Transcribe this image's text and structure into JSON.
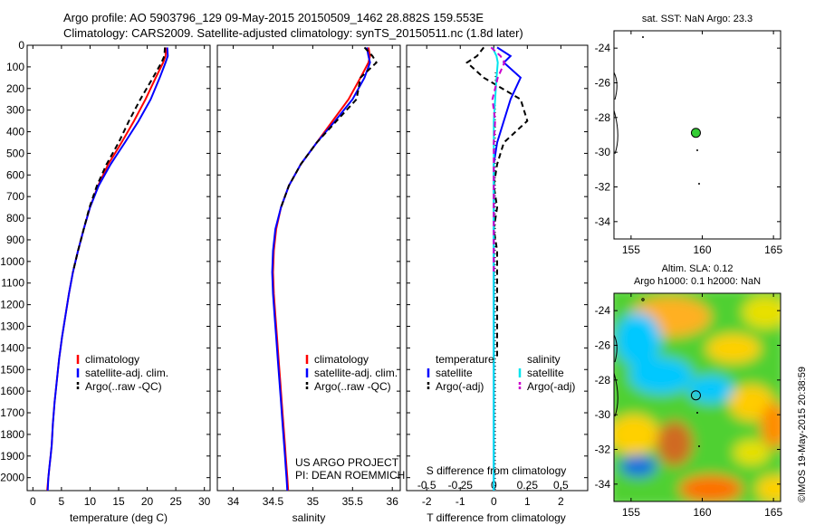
{
  "header": {
    "line1": "Argo profile: AO 5903796_129 09-May-2015 20150509_1462 28.882S 159.553E",
    "line2": "Climatology: CARS2009. Satellite-adjusted climatology: synTS_20150511.nc (1.8d later)"
  },
  "side_label": "©IMOS 19-May-2015 20:38:59",
  "project_note": [
    "US ARGO PROJECT",
    "PI: DEAN ROEMMICH"
  ],
  "colors": {
    "climatology": "#ff0000",
    "satellite": "#0000ff",
    "argo": "#000000",
    "sal_satellite": "#00e5ee",
    "sal_argo": "#cc00cc",
    "float_marker": "#33cc33"
  },
  "chart_data": [
    {
      "type": "line",
      "id": "temperature",
      "xlabel": "temperature (deg C)",
      "ylabel": "",
      "xlim": [
        -1,
        31
      ],
      "ylim": [
        2060,
        0
      ],
      "xticks": [
        0,
        5,
        10,
        15,
        20,
        25,
        30
      ],
      "yticks": [
        0,
        100,
        200,
        300,
        400,
        500,
        600,
        700,
        800,
        900,
        1000,
        1100,
        1200,
        1300,
        1400,
        1500,
        1600,
        1700,
        1800,
        1900,
        2000
      ],
      "legend": [
        "climatology",
        "satellite-adj. clim.",
        "Argo(..raw -QC)"
      ],
      "legend_position": "lower-middle",
      "series": [
        {
          "name": "climatology",
          "color": "#ff0000",
          "style": "solid",
          "x": [
            23.3,
            23.2,
            22.8,
            21.5,
            19.7,
            17.7,
            15.5,
            13.2,
            11.4,
            10.0,
            8.9,
            7.9,
            7.0,
            6.3,
            5.7,
            5.1,
            4.6,
            4.2,
            3.8,
            3.5,
            3.3,
            3.1,
            2.9,
            2.7,
            2.5
          ],
          "y": [
            10,
            50,
            80,
            150,
            250,
            350,
            450,
            550,
            650,
            750,
            850,
            950,
            1050,
            1150,
            1250,
            1350,
            1450,
            1550,
            1650,
            1750,
            1850,
            1900,
            1950,
            2000,
            2060
          ]
        },
        {
          "name": "satellite-adj. clim.",
          "color": "#0000ff",
          "style": "solid",
          "x": [
            23.5,
            23.6,
            23.2,
            22.2,
            20.6,
            18.5,
            16.1,
            13.6,
            11.5,
            10.0,
            8.9,
            7.9,
            7.0,
            6.3,
            5.7,
            5.1,
            4.6,
            4.2,
            3.8,
            3.5,
            3.3,
            3.1,
            2.9,
            2.7,
            2.6
          ],
          "y": [
            10,
            50,
            80,
            150,
            250,
            350,
            450,
            550,
            650,
            750,
            850,
            950,
            1050,
            1150,
            1250,
            1350,
            1450,
            1550,
            1650,
            1750,
            1850,
            1900,
            1950,
            2000,
            2060
          ]
        },
        {
          "name": "Argo(..raw -QC)",
          "color": "#000000",
          "style": "dashed",
          "x": [
            23.1,
            23.0,
            22.5,
            21.0,
            18.8,
            16.8,
            15.0,
            12.9,
            11.2,
            9.9,
            8.9,
            7.9,
            7.0
          ],
          "y": [
            10,
            50,
            80,
            150,
            250,
            350,
            450,
            550,
            650,
            750,
            850,
            950,
            1050
          ]
        }
      ]
    },
    {
      "type": "line",
      "id": "salinity",
      "xlabel": "salinity",
      "xlim": [
        33.8,
        36.1
      ],
      "ylim": [
        2060,
        0
      ],
      "xticks": [
        34,
        34.5,
        35,
        35.5,
        36
      ],
      "legend": [
        "climatology",
        "satellite-adj. clim.",
        "Argo(..raw -QC)"
      ],
      "legend_position": "lower-right",
      "series": [
        {
          "name": "climatology",
          "color": "#ff0000",
          "style": "solid",
          "x": [
            35.7,
            35.72,
            35.7,
            35.6,
            35.45,
            35.25,
            35.05,
            34.85,
            34.7,
            34.6,
            34.54,
            34.51,
            34.5,
            34.51,
            34.53,
            34.55,
            34.57,
            34.59,
            34.61,
            34.63,
            34.65,
            34.66,
            34.67,
            34.68,
            34.69
          ],
          "y": [
            10,
            50,
            80,
            150,
            250,
            350,
            450,
            550,
            650,
            750,
            850,
            950,
            1050,
            1150,
            1250,
            1350,
            1450,
            1550,
            1650,
            1750,
            1850,
            1900,
            1950,
            2000,
            2060
          ]
        },
        {
          "name": "satellite-adj. clim.",
          "color": "#0000ff",
          "style": "solid",
          "x": [
            35.68,
            35.7,
            35.72,
            35.65,
            35.5,
            35.28,
            35.05,
            34.85,
            34.7,
            34.6,
            34.53,
            34.5,
            34.49,
            34.5,
            34.52,
            34.54,
            34.56,
            34.58,
            34.6,
            34.62,
            34.64,
            34.65,
            34.66,
            34.67,
            34.68
          ],
          "y": [
            10,
            50,
            80,
            150,
            250,
            350,
            450,
            550,
            650,
            750,
            850,
            950,
            1050,
            1150,
            1250,
            1350,
            1450,
            1550,
            1650,
            1750,
            1850,
            1900,
            1950,
            2000,
            2060
          ]
        },
        {
          "name": "Argo(..raw -QC)",
          "color": "#000000",
          "style": "dashed",
          "x": [
            35.65,
            35.75,
            35.8,
            35.6,
            35.55,
            35.3,
            35.05,
            34.85,
            34.7,
            34.6
          ],
          "y": [
            10,
            50,
            80,
            150,
            250,
            350,
            450,
            550,
            650,
            750
          ]
        }
      ]
    },
    {
      "type": "line",
      "id": "differences",
      "xlabel": "T difference from climatology",
      "xlabel_top": "S difference from climatology",
      "xlim": [
        -2.6,
        2.8
      ],
      "ylim": [
        2060,
        0
      ],
      "xticks": [
        -2,
        -1,
        0,
        1,
        2
      ],
      "xticks_top": [
        -0.5,
        -0.25,
        0,
        0.25,
        0.5
      ],
      "xticks_top_labels": [
        "-0.5",
        "-0.25",
        "0",
        "0.25",
        "0.5"
      ],
      "legend_temperature": [
        "temperature",
        "satellite",
        "Argo(-adj)"
      ],
      "legend_salinity": [
        "salinity",
        "satellite",
        "Argo(-adj)"
      ],
      "legend_position": "lower-middle",
      "series": [
        {
          "name": "T satellite",
          "color": "#0000ff",
          "style": "solid",
          "axis": "T",
          "x": [
            0.1,
            0.5,
            0.3,
            0.8,
            0.5,
            0.3,
            0.1,
            0.0,
            0.0,
            0.0,
            0.0,
            0.0,
            0.0,
            0.0,
            0.0,
            0.0,
            0.0,
            0.0,
            0.0,
            0.0,
            0.0
          ],
          "y": [
            10,
            50,
            80,
            150,
            250,
            350,
            450,
            550,
            650,
            750,
            850,
            950,
            1050,
            1150,
            1250,
            1350,
            1450,
            1550,
            1650,
            1750,
            2060
          ]
        },
        {
          "name": "T Argo(-adj)",
          "color": "#000000",
          "style": "dashed",
          "axis": "T",
          "x": [
            -0.3,
            -0.5,
            -0.8,
            -0.3,
            0.8,
            1.0,
            0.3,
            0.1,
            0.0,
            0.1,
            0.0,
            0.1,
            0.1,
            0.1,
            0.1,
            0.1,
            0.1
          ],
          "y": [
            10,
            50,
            80,
            150,
            250,
            350,
            450,
            550,
            650,
            750,
            850,
            950,
            1050,
            1150,
            1250,
            1350,
            1450
          ]
        },
        {
          "name": "S satellite",
          "color": "#00e5ee",
          "style": "solid",
          "axis": "S",
          "x": [
            -0.01,
            0.02,
            0.03,
            0.02,
            0.01,
            0.0,
            0.0,
            0.0,
            0.0,
            0.0,
            0.0,
            0.0,
            0.0,
            0.0
          ],
          "y": [
            10,
            50,
            80,
            150,
            250,
            350,
            450,
            550,
            650,
            800,
            1000,
            1300,
            1700,
            2060
          ]
        },
        {
          "name": "S Argo(-adj)",
          "color": "#cc00cc",
          "style": "dashed",
          "axis": "S",
          "x": [
            -0.02,
            0.05,
            0.08,
            0.03,
            -0.01,
            0.01,
            0.0,
            0.0,
            0.0,
            0.0,
            0.0
          ],
          "y": [
            10,
            50,
            80,
            150,
            250,
            350,
            450,
            550,
            650,
            750,
            1050
          ]
        }
      ]
    },
    {
      "type": "scatter",
      "id": "sst-map",
      "title": "sat. SST: NaN Argo: 23.3",
      "xlim": [
        153.8,
        165.5
      ],
      "ylim": [
        -35,
        -23
      ],
      "xticks": [
        155,
        160,
        165
      ],
      "yticks": [
        -24,
        -26,
        -28,
        -30,
        -32,
        -34
      ],
      "float_position": {
        "lon": 159.553,
        "lat": -28.882
      }
    },
    {
      "type": "heatmap",
      "id": "sla-map",
      "title": "Altim. SLA: 0.12",
      "subtitle": "Argo h1000: 0.1 h2000: NaN",
      "xlim": [
        153.8,
        165.5
      ],
      "ylim": [
        -35,
        -23
      ],
      "xticks": [
        155,
        160,
        165
      ],
      "yticks": [
        -24,
        -26,
        -28,
        -30,
        -32,
        -34
      ],
      "float_position": {
        "lon": 159.553,
        "lat": -28.882
      },
      "colorscale": [
        "#0033cc",
        "#00c8ff",
        "#00d060",
        "#c8e600",
        "#ffcc00",
        "#ff7a00",
        "#d02000"
      ]
    }
  ]
}
